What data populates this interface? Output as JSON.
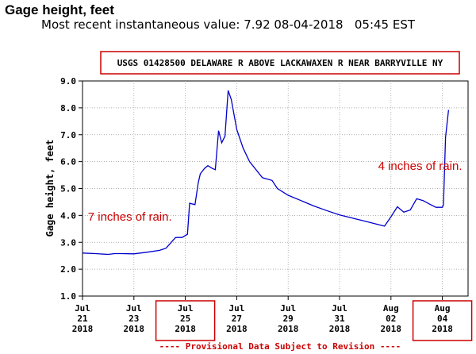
{
  "header": {
    "title": "Gage height, feet",
    "subtitle": "Most recent instantaneous value: 7.92 08-04-2018   05:45 EST"
  },
  "chart_data": {
    "type": "line",
    "station": "USGS 01428500 DELAWARE R ABOVE LACKAWAXEN R NEAR BARRYVILLE NY",
    "ylabel": "Gage height, feet",
    "xlabel": "",
    "ylim": [
      1.0,
      9.0
    ],
    "yticks": [
      "1.0",
      "2.0",
      "3.0",
      "4.0",
      "5.0",
      "6.0",
      "7.0",
      "8.0",
      "9.0"
    ],
    "xticks": [
      {
        "date": "2018-07-21",
        "label": [
          "Jul",
          "21",
          "2018"
        ],
        "highlight": false
      },
      {
        "date": "2018-07-23",
        "label": [
          "Jul",
          "23",
          "2018"
        ],
        "highlight": false
      },
      {
        "date": "2018-07-25",
        "label": [
          "Jul",
          "25",
          "2018"
        ],
        "highlight": true
      },
      {
        "date": "2018-07-27",
        "label": [
          "Jul",
          "27",
          "2018"
        ],
        "highlight": false
      },
      {
        "date": "2018-07-29",
        "label": [
          "Jul",
          "29",
          "2018"
        ],
        "highlight": false
      },
      {
        "date": "2018-07-31",
        "label": [
          "Jul",
          "31",
          "2018"
        ],
        "highlight": false
      },
      {
        "date": "2018-08-02",
        "label": [
          "Aug",
          "02",
          "2018"
        ],
        "highlight": false
      },
      {
        "date": "2018-08-04",
        "label": [
          "Aug",
          "04",
          "2018"
        ],
        "highlight": true
      }
    ],
    "xlim": [
      "2018-07-21T00:00",
      "2018-08-05T00:00"
    ],
    "series": [
      {
        "color": "#0000cc",
        "points": [
          [
            "2018-07-21T00:00",
            2.6
          ],
          [
            "2018-07-21T12:00",
            2.58
          ],
          [
            "2018-07-22T00:00",
            2.55
          ],
          [
            "2018-07-22T06:00",
            2.58
          ],
          [
            "2018-07-22T12:00",
            2.58
          ],
          [
            "2018-07-23T00:00",
            2.57
          ],
          [
            "2018-07-23T12:00",
            2.63
          ],
          [
            "2018-07-24T00:00",
            2.7
          ],
          [
            "2018-07-24T06:00",
            2.78
          ],
          [
            "2018-07-24T12:00",
            3.05
          ],
          [
            "2018-07-24T15:00",
            3.18
          ],
          [
            "2018-07-24T21:00",
            3.18
          ],
          [
            "2018-07-25T02:00",
            3.3
          ],
          [
            "2018-07-25T04:00",
            4.45
          ],
          [
            "2018-07-25T09:00",
            4.4
          ],
          [
            "2018-07-25T12:00",
            5.2
          ],
          [
            "2018-07-25T14:00",
            5.55
          ],
          [
            "2018-07-25T18:00",
            5.75
          ],
          [
            "2018-07-25T21:00",
            5.85
          ],
          [
            "2018-07-26T01:00",
            5.75
          ],
          [
            "2018-07-26T04:00",
            5.7
          ],
          [
            "2018-07-26T07:00",
            7.15
          ],
          [
            "2018-07-26T10:00",
            6.7
          ],
          [
            "2018-07-26T13:00",
            6.95
          ],
          [
            "2018-07-26T16:00",
            8.65
          ],
          [
            "2018-07-26T19:00",
            8.3
          ],
          [
            "2018-07-27T00:00",
            7.2
          ],
          [
            "2018-07-27T06:00",
            6.5
          ],
          [
            "2018-07-27T12:00",
            6.0
          ],
          [
            "2018-07-28T00:00",
            5.4
          ],
          [
            "2018-07-28T09:00",
            5.3
          ],
          [
            "2018-07-28T14:00",
            5.0
          ],
          [
            "2018-07-29T00:00",
            4.75
          ],
          [
            "2018-07-29T12:00",
            4.55
          ],
          [
            "2018-07-30T00:00",
            4.35
          ],
          [
            "2018-07-30T12:00",
            4.18
          ],
          [
            "2018-07-31T00:00",
            4.02
          ],
          [
            "2018-07-31T12:00",
            3.9
          ],
          [
            "2018-08-01T00:00",
            3.78
          ],
          [
            "2018-08-01T12:00",
            3.66
          ],
          [
            "2018-08-01T18:00",
            3.6
          ],
          [
            "2018-08-02T00:00",
            3.95
          ],
          [
            "2018-08-02T06:00",
            4.32
          ],
          [
            "2018-08-02T12:00",
            4.12
          ],
          [
            "2018-08-02T18:00",
            4.2
          ],
          [
            "2018-08-03T00:00",
            4.62
          ],
          [
            "2018-08-03T06:00",
            4.55
          ],
          [
            "2018-08-03T12:00",
            4.42
          ],
          [
            "2018-08-03T18:00",
            4.3
          ],
          [
            "2018-08-04T00:00",
            4.3
          ],
          [
            "2018-08-04T01:00",
            4.4
          ],
          [
            "2018-08-04T03:00",
            6.9
          ],
          [
            "2018-08-04T05:45",
            7.92
          ]
        ]
      }
    ],
    "annotations": [
      {
        "text": "7 inches of rain.",
        "at": [
          "2018-07-21T05:00",
          3.8
        ],
        "color": "#cc0000"
      },
      {
        "text": "4 inches of rain.",
        "at": [
          "2018-08-01T12:00",
          5.7
        ],
        "color": "#cc0000"
      }
    ],
    "footer": "---- Provisional Data Subject to Revision ----"
  }
}
